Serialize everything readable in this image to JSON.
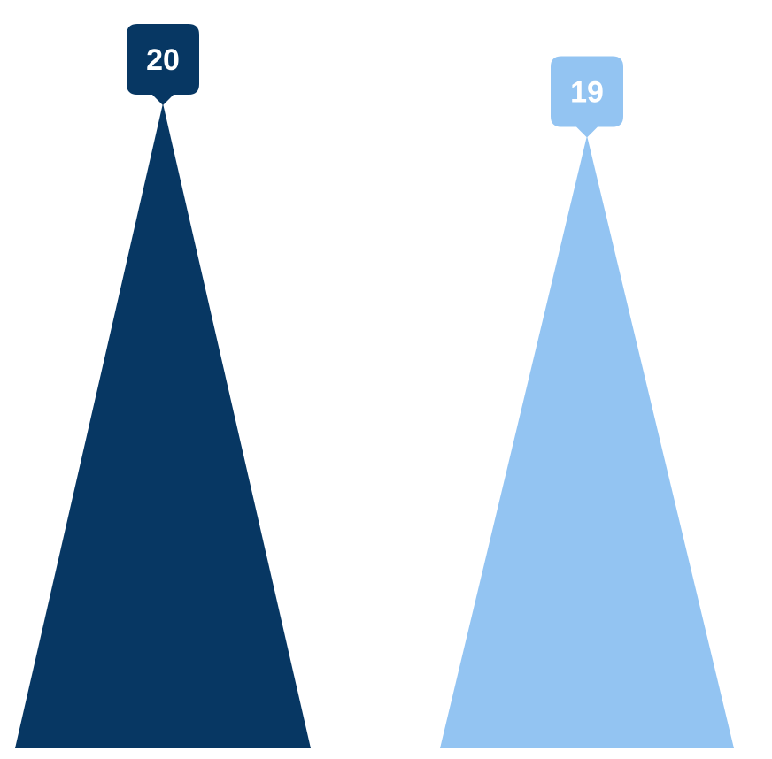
{
  "chart_data": {
    "type": "bar",
    "bar_shape": "triangle",
    "categories": [
      "",
      ""
    ],
    "values": [
      20,
      19
    ],
    "value_labels": [
      "20",
      "19"
    ],
    "colors": [
      "#073763",
      "#93c4f2"
    ],
    "ylim": [
      0,
      20
    ],
    "title": "",
    "xlabel": "",
    "ylabel": "",
    "grid": false,
    "legend": "none",
    "data_labels": "callout-above-peak"
  }
}
